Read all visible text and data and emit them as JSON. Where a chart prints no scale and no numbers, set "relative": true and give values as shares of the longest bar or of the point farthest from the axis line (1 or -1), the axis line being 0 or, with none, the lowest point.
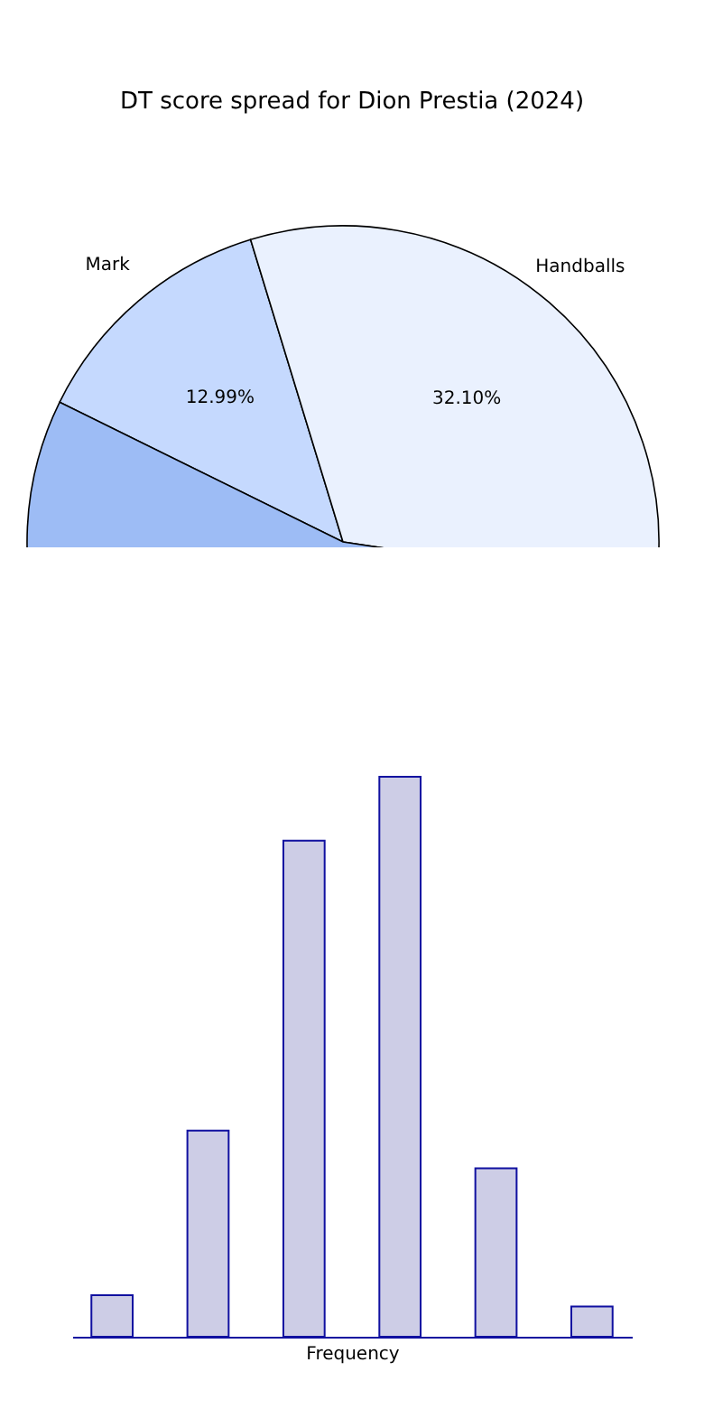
{
  "chart_data": [
    {
      "type": "pie",
      "title": "DT score spread for Dion Prestia (2024)",
      "categories": [
        "Mark",
        "Handballs",
        null
      ],
      "values": [
        12.99,
        32.1,
        54.91
      ],
      "colors": [
        "#c5d9fe",
        "#eaf1fe",
        "#9dbcf5"
      ],
      "value_labels": [
        "12.99%",
        "32.10%",
        null
      ],
      "legend": false
    },
    {
      "type": "bar",
      "categories": [
        null,
        null,
        null,
        null,
        null,
        null
      ],
      "values": [
        0.074,
        0.368,
        0.886,
        1,
        0.301,
        0.054
      ],
      "color": "#cdcde6",
      "relative": true,
      "xlabel": "Frequency",
      "grid": false
    }
  ]
}
